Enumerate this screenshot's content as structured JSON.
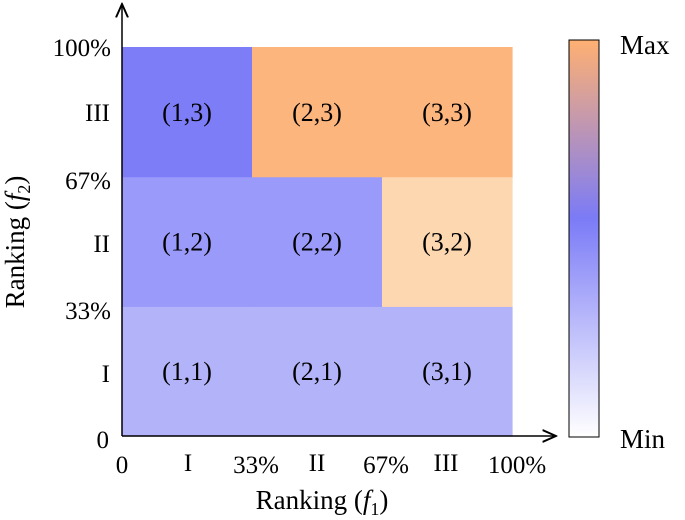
{
  "chart_data": {
    "type": "heatmap",
    "title": "",
    "xlabel": "Ranking (f1)",
    "ylabel": "Ranking (f2)",
    "x_ticks_percent": [
      "0",
      "33%",
      "67%",
      "100%"
    ],
    "x_ticks_levels": [
      "I",
      "II",
      "III"
    ],
    "y_ticks_percent": [
      "0",
      "33%",
      "67%",
      "100%"
    ],
    "y_ticks_levels": [
      "I",
      "II",
      "III"
    ],
    "colorbar": {
      "max_label": "Max",
      "min_label": "Min",
      "colors": [
        "#ffffff",
        "#7b7bf7",
        "#ffb072"
      ]
    },
    "cells": [
      {
        "label": "(1,1)",
        "col": 1,
        "row": 1,
        "color": "#b3b3f9"
      },
      {
        "label": "(2,1)",
        "col": 2,
        "row": 1,
        "color": "#b3b3f9"
      },
      {
        "label": "(3,1)",
        "col": 3,
        "row": 1,
        "color": "#b3b3f9"
      },
      {
        "label": "(1,2)",
        "col": 1,
        "row": 2,
        "color": "#9a9afa"
      },
      {
        "label": "(2,2)",
        "col": 2,
        "row": 2,
        "color": "#9a9afa"
      },
      {
        "label": "(3,2)",
        "col": 3,
        "row": 2,
        "color": "#fdd7b0"
      },
      {
        "label": "(1,3)",
        "col": 1,
        "row": 3,
        "color": "#7d7df8"
      },
      {
        "label": "(2,3)",
        "col": 2,
        "row": 3,
        "color": "#fdb57e"
      },
      {
        "label": "(3,3)",
        "col": 3,
        "row": 3,
        "color": "#fdb57e"
      }
    ]
  }
}
